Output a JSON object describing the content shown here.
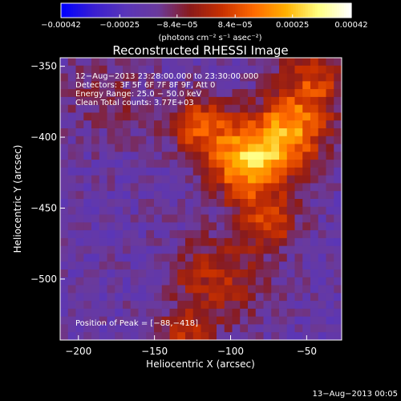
{
  "chart_data": {
    "type": "heatmap",
    "title": "Reconstructed RHESSI Image",
    "xlabel": "Heliocentric X (arcsec)",
    "ylabel": "Heliocentric Y (arcsec)",
    "xlim": [
      -212,
      -27
    ],
    "ylim": [
      -543,
      -344
    ],
    "xticks": [
      -200,
      -150,
      -100,
      -50
    ],
    "xtick_labels": [
      "−200",
      "−150",
      "−100",
      "−50"
    ],
    "yticks": [
      -350,
      -400,
      -450,
      -500
    ],
    "ytick_labels": [
      "−350",
      "−400",
      "−450",
      "−500"
    ],
    "colorbar": {
      "range": [
        -0.00042,
        0.00042
      ],
      "ticks": [
        -0.00042,
        -0.00025,
        -8.4e-05,
        8.4e-05,
        0.00025,
        0.00042
      ],
      "tick_labels": [
        "−0.00042",
        "−0.00025",
        "−8.4e−05",
        "8.4e−05",
        "0.00025",
        "0.00042"
      ],
      "unit_label": "(photons cm⁻² s⁻¹ asec⁻²)"
    },
    "annotations": [
      "12−Aug−2013 23:28:00.000 to 23:30:00.000",
      "Detectors: 3F 5F 6F 7F 8F 9F, Att 0",
      "Energy Range: 25.0 − 50.0 keV",
      "Clean    Total counts: 3.77E+03"
    ],
    "peak_label": "Position of Peak = [−88,−418]",
    "peak": [
      -88,
      -418
    ],
    "sources": [
      {
        "x": -88,
        "y": -418,
        "sigma": 18,
        "amp": 0.00042
      },
      {
        "x": -60,
        "y": -395,
        "sigma": 17,
        "amp": 0.00033
      },
      {
        "x": -120,
        "y": -392,
        "sigma": 14,
        "amp": 0.00026
      },
      {
        "x": -75,
        "y": -460,
        "sigma": 13,
        "amp": 0.00024
      },
      {
        "x": -45,
        "y": -360,
        "sigma": 16,
        "amp": 0.00022
      },
      {
        "x": -110,
        "y": -500,
        "sigma": 22,
        "amp": 0.00018
      },
      {
        "x": -130,
        "y": -540,
        "sigma": 12,
        "amp": 0.00016
      },
      {
        "x": -180,
        "y": -370,
        "sigma": 22,
        "amp": 8e-05
      }
    ],
    "background": -0.00017,
    "colormap": [
      "#0000ff",
      "#3a1fd0",
      "#5a36b8",
      "#6a3a9c",
      "#8a1a1a",
      "#c83000",
      "#ff6a00",
      "#ffb000",
      "#ffff80",
      "#ffffff"
    ],
    "grid": false
  },
  "footer": {
    "date_stamp": "13−Aug−2013 00:05"
  }
}
